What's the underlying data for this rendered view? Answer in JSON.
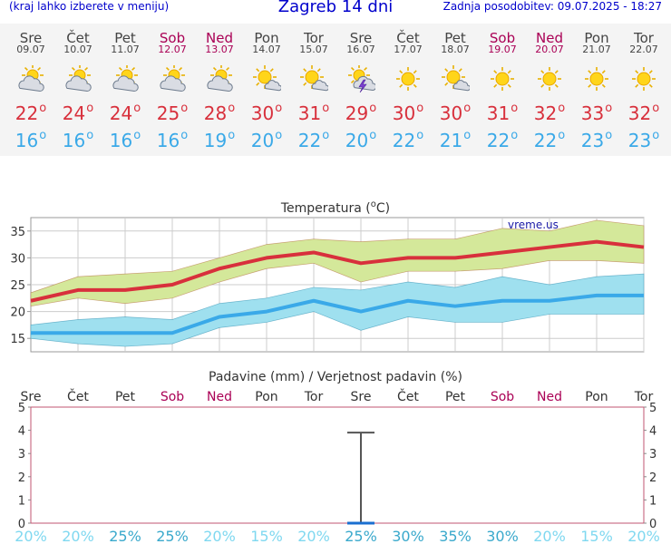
{
  "header": {
    "menu_hint": "(kraj lahko izberete v meniju)",
    "title": "Zagreb 14 dni",
    "last_update": "Zadnja posodobitev: 09.07.2025 - 18:27"
  },
  "days": [
    {
      "name": "Sre",
      "date": "09.07",
      "weekend": false,
      "icon": "sun-cloud-icon",
      "max": "22",
      "min": "16"
    },
    {
      "name": "Čet",
      "date": "10.07",
      "weekend": false,
      "icon": "sun-cloud-icon",
      "max": "24",
      "min": "16"
    },
    {
      "name": "Pet",
      "date": "11.07",
      "weekend": false,
      "icon": "sun-cloud-icon",
      "max": "24",
      "min": "16"
    },
    {
      "name": "Sob",
      "date": "12.07",
      "weekend": true,
      "icon": "sun-cloud-icon",
      "max": "25",
      "min": "16"
    },
    {
      "name": "Ned",
      "date": "13.07",
      "weekend": true,
      "icon": "sun-cloud-icon",
      "max": "28",
      "min": "19"
    },
    {
      "name": "Pon",
      "date": "14.07",
      "weekend": false,
      "icon": "sun-small-cloud-icon",
      "max": "30",
      "min": "20"
    },
    {
      "name": "Tor",
      "date": "15.07",
      "weekend": false,
      "icon": "sun-small-cloud-icon",
      "max": "31",
      "min": "22"
    },
    {
      "name": "Sre",
      "date": "16.07",
      "weekend": false,
      "icon": "thunderstorm-icon",
      "max": "29",
      "min": "20"
    },
    {
      "name": "Čet",
      "date": "17.07",
      "weekend": false,
      "icon": "sun-icon",
      "max": "30",
      "min": "22"
    },
    {
      "name": "Pet",
      "date": "18.07",
      "weekend": false,
      "icon": "sun-small-cloud-icon",
      "max": "30",
      "min": "21"
    },
    {
      "name": "Sob",
      "date": "19.07",
      "weekend": true,
      "icon": "sun-icon",
      "max": "31",
      "min": "22"
    },
    {
      "name": "Ned",
      "date": "20.07",
      "weekend": true,
      "icon": "sun-icon",
      "max": "32",
      "min": "22"
    },
    {
      "name": "Pon",
      "date": "21.07",
      "weekend": false,
      "icon": "sun-icon",
      "max": "33",
      "min": "23"
    },
    {
      "name": "Tor",
      "date": "22.07",
      "weekend": false,
      "icon": "sun-icon",
      "max": "32",
      "min": "23"
    }
  ],
  "degree_symbol": "o",
  "colors": {
    "title": "#0000cc",
    "weekend": "#aa0055",
    "max_temp": "#d8303c",
    "min_temp": "#3aa9e8",
    "max_band": "#d4e89a",
    "min_band": "#9fe0ef",
    "precip_line": "#555555",
    "precip_prob": "#7fd8f0",
    "precip_prob_bold": "#3aa9cc"
  },
  "chart_data": [
    {
      "type": "line",
      "title": "Temperatura (°C)",
      "title_prefix": "Temperatura (",
      "title_unit_sup": "o",
      "title_suffix": "C)",
      "watermark": "vreme.us",
      "x": [
        "09.07",
        "10.07",
        "11.07",
        "12.07",
        "13.07",
        "14.07",
        "15.07",
        "16.07",
        "17.07",
        "18.07",
        "19.07",
        "20.07",
        "21.07",
        "22.07"
      ],
      "yticks": [
        15,
        20,
        25,
        30,
        35
      ],
      "ylim": [
        12.5,
        37.5
      ],
      "grid": true,
      "series": [
        {
          "name": "max",
          "values": [
            22,
            24,
            24,
            25,
            28,
            30,
            31,
            29,
            30,
            30,
            31,
            32,
            33,
            32
          ],
          "band_low": [
            21,
            22.5,
            21.5,
            22.5,
            25.5,
            28,
            29,
            25.5,
            27.5,
            27.5,
            28,
            29.5,
            29.5,
            29
          ],
          "band_high": [
            23.5,
            26.5,
            27,
            27.5,
            30,
            32.5,
            33.5,
            33,
            33.5,
            33.5,
            35.5,
            35,
            37,
            36
          ]
        },
        {
          "name": "min",
          "values": [
            16,
            16,
            16,
            16,
            19,
            20,
            22,
            20,
            22,
            21,
            22,
            22,
            23,
            23
          ],
          "band_low": [
            15,
            14,
            13.5,
            14,
            17,
            18,
            20,
            16.5,
            19,
            18,
            18,
            19.5,
            19.5,
            19.5
          ],
          "band_high": [
            17.5,
            18.5,
            19,
            18.5,
            21.5,
            22.5,
            24.5,
            24,
            25.5,
            24.5,
            26.5,
            25,
            26.5,
            27
          ]
        }
      ]
    },
    {
      "type": "bar",
      "title": "Padavine (mm) / Verjetnost padavin (%)",
      "categories": [
        "Sre",
        "Čet",
        "Pet",
        "Sob",
        "Ned",
        "Pon",
        "Tor",
        "Sre",
        "Čet",
        "Pet",
        "Sob",
        "Ned",
        "Pon",
        "Tor"
      ],
      "weekend": [
        false,
        false,
        false,
        true,
        true,
        false,
        false,
        false,
        false,
        false,
        true,
        true,
        false,
        false
      ],
      "yticks": [
        0,
        1,
        2,
        3,
        4,
        5
      ],
      "ylim": [
        0,
        5
      ],
      "precipitation_mm": [
        0,
        0,
        0,
        0,
        0,
        0,
        0,
        0,
        0,
        0,
        0,
        0,
        0,
        0
      ],
      "precipitation_range_mm": [
        null,
        null,
        null,
        null,
        null,
        null,
        null,
        [
          0,
          3.9
        ],
        null,
        null,
        null,
        null,
        null,
        null
      ],
      "probability_labels": [
        "20%",
        "20%",
        "25%",
        "25%",
        "20%",
        "15%",
        "20%",
        "25%",
        "30%",
        "35%",
        "30%",
        "20%",
        "15%",
        "20%"
      ],
      "probability_bold": [
        false,
        false,
        true,
        true,
        false,
        false,
        false,
        true,
        true,
        true,
        true,
        false,
        false,
        false
      ]
    }
  ]
}
